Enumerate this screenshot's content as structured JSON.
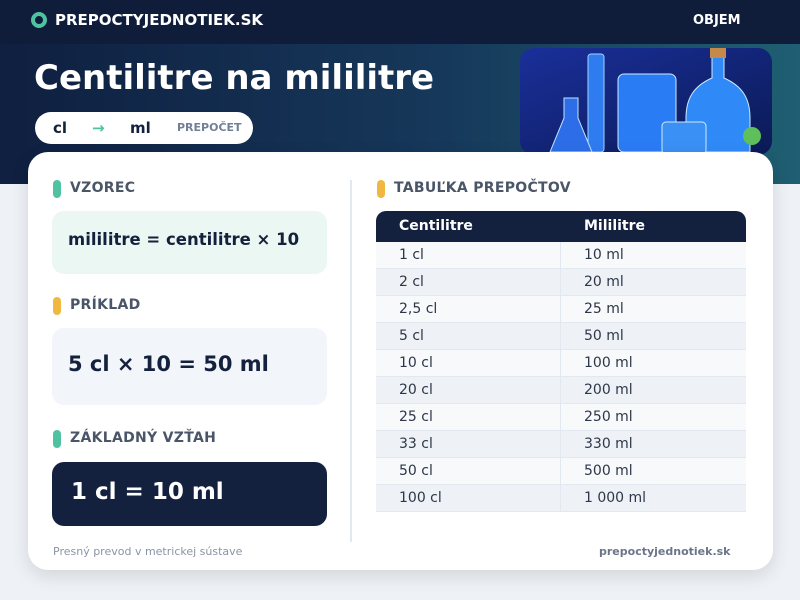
{
  "header": {
    "site": "PREPOCTYJEDNOTIEK.SK",
    "nav": "OBJEM"
  },
  "hero": {
    "title": "Centilitre na mililitre",
    "from": "cl",
    "arrow": "→",
    "to": "ml",
    "tag": "PREPOČET"
  },
  "formula": {
    "heading": "VZOREC",
    "text": "mililitre = centilitre × 10"
  },
  "example": {
    "heading": "PRÍKLAD",
    "text": "5 cl × 10 = 50 ml"
  },
  "relation": {
    "heading": "ZÁKLADNÝ VZŤAH",
    "text": "1 cl = 10 ml"
  },
  "table": {
    "heading": "TABUĽKA PREPOČTOV",
    "columns": [
      "Centilitre",
      "Mililitre"
    ],
    "rows": [
      [
        "1 cl",
        "10 ml"
      ],
      [
        "2 cl",
        "20 ml"
      ],
      [
        "2,5 cl",
        "25 ml"
      ],
      [
        "5 cl",
        "50 ml"
      ],
      [
        "10 cl",
        "100 ml"
      ],
      [
        "20 cl",
        "200 ml"
      ],
      [
        "25 cl",
        "250 ml"
      ],
      [
        "33 cl",
        "330 ml"
      ],
      [
        "50 cl",
        "500 ml"
      ],
      [
        "100 cl",
        "1 000 ml"
      ]
    ]
  },
  "footer": {
    "note": "Presný prevod v metrickej sústave",
    "site": "prepoctyjednotiek.sk"
  }
}
